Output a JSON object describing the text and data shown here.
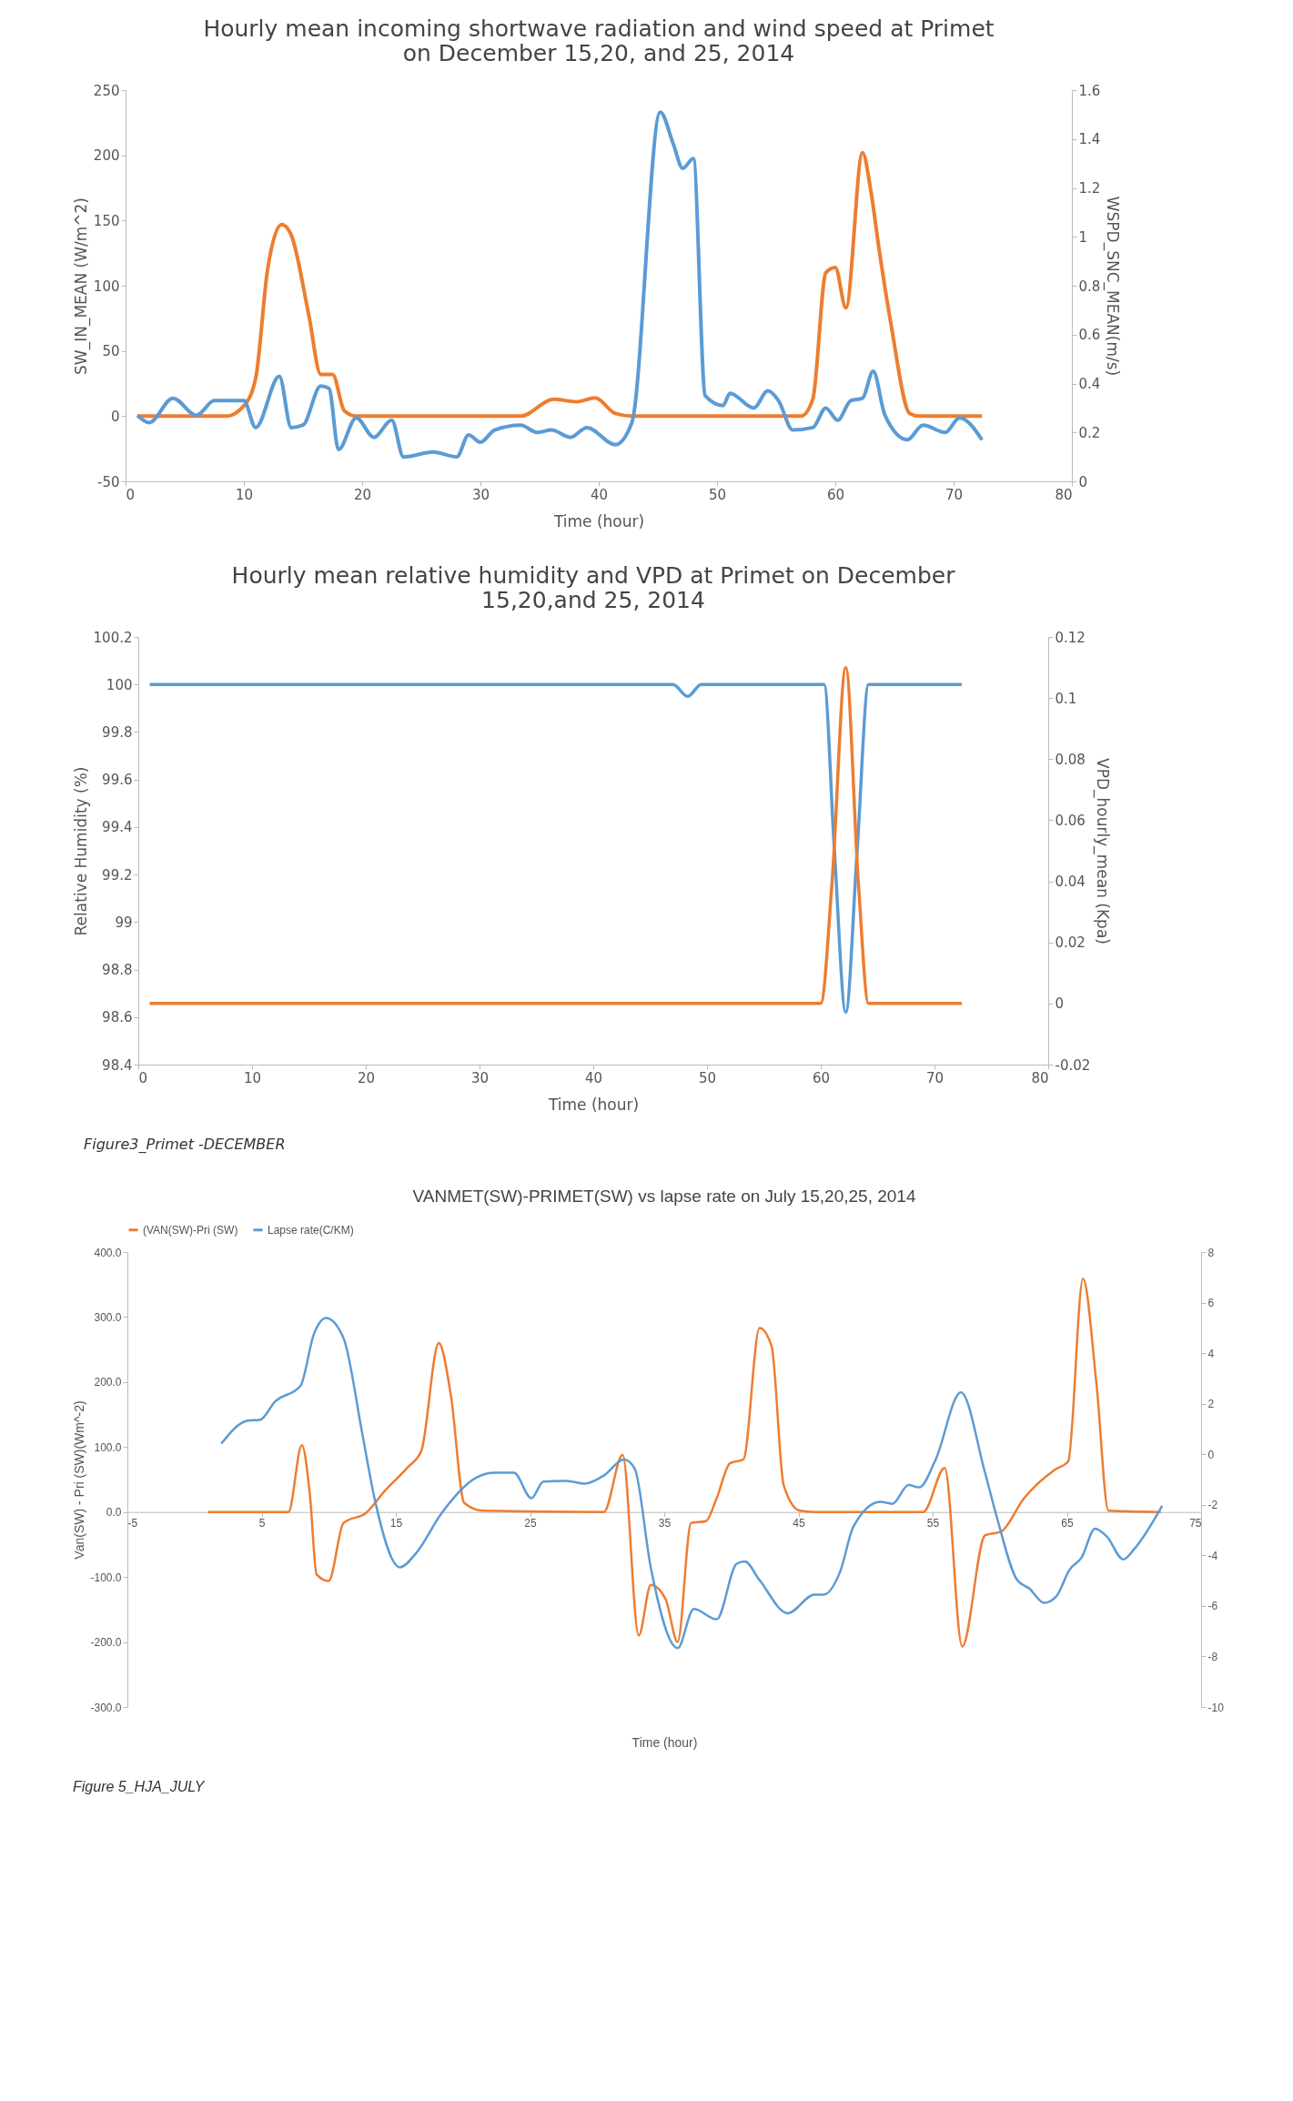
{
  "chart_data": [
    {
      "type": "line",
      "title": "Hourly mean incoming  shortwave radiation and wind speed at Primet on December 15,20, and 25, 2014",
      "xlabel": "Time (hour)",
      "ylabel": "SW_IN_MEAN (W/m^2)",
      "y2label": "WSPD_SNC_MEAN(m/s)",
      "xlim": [
        0,
        80
      ],
      "xticks": [
        0,
        10,
        20,
        30,
        40,
        50,
        60,
        70,
        80
      ],
      "ylim": [
        -50,
        250
      ],
      "yticks": [
        -50,
        0,
        50,
        100,
        150,
        200,
        250
      ],
      "y2lim": [
        0,
        1.6
      ],
      "y2ticks": [
        0,
        0.2,
        0.4,
        0.6,
        0.8,
        1,
        1.2,
        1.4,
        1.6
      ],
      "series": [
        {
          "color": "#ed7d31",
          "x": [
            1,
            8.5,
            10,
            11,
            12,
            13.2,
            14,
            15.5,
            16.5,
            17.5,
            18.5,
            19.5,
            33.4,
            36.2,
            38.1,
            39.7,
            41.4,
            42.8,
            56.4,
            57.1,
            58.1,
            59.2,
            60,
            60.9,
            62.3,
            63,
            63.7,
            64.7,
            66.3,
            67.1,
            72.4
          ],
          "values": [
            0,
            0,
            8,
            29,
            112,
            147,
            139,
            77,
            32,
            32,
            4,
            0,
            0,
            13,
            11,
            14,
            2,
            0,
            0,
            0,
            13,
            110,
            114,
            83,
            202,
            173,
            128,
            71,
            2,
            0,
            0
          ]
        },
        {
          "color": "#5b9bd5",
          "axis": "y2",
          "x": [
            1,
            2,
            4,
            6,
            7.5,
            10,
            11,
            13,
            14,
            15,
            16.5,
            17.2,
            18,
            19.5,
            21,
            22.5,
            23.5,
            26,
            28,
            29,
            30,
            31.2,
            33.4,
            34.8,
            36,
            37.6,
            39,
            41.4,
            42.8,
            45.2,
            46.3,
            47.1,
            48,
            49,
            50.5,
            51.1,
            53.1,
            54.3,
            55.2,
            56.4,
            58.1,
            59.2,
            60.2,
            61.3,
            62.3,
            63.2,
            64.2,
            66.1,
            67.4,
            69.3,
            70.5,
            72.4
          ],
          "values": [
            0.27,
            0.24,
            0.34,
            0.27,
            0.33,
            0.33,
            0.22,
            0.43,
            0.22,
            0.23,
            0.39,
            0.38,
            0.13,
            0.26,
            0.18,
            0.25,
            0.1,
            0.12,
            0.1,
            0.19,
            0.16,
            0.21,
            0.23,
            0.2,
            0.21,
            0.18,
            0.22,
            0.15,
            0.24,
            1.51,
            1.38,
            1.28,
            1.32,
            0.35,
            0.31,
            0.36,
            0.3,
            0.37,
            0.33,
            0.21,
            0.22,
            0.3,
            0.25,
            0.33,
            0.34,
            0.45,
            0.27,
            0.17,
            0.23,
            0.2,
            0.26,
            0.17
          ]
        }
      ]
    },
    {
      "type": "line",
      "title": "Hourly mean relative humidity and VPD at Primet on December 15,20,and 25, 2014",
      "xlabel": "Time (hour)",
      "ylabel": "Relative Humidity (%)",
      "y2label": "VPD_hourly_mean (Kpa)",
      "xlim": [
        0,
        80
      ],
      "xticks": [
        0,
        10,
        20,
        30,
        40,
        50,
        60,
        70,
        80
      ],
      "ylim": [
        98.4,
        100.2
      ],
      "yticks": [
        98.4,
        98.6,
        98.8,
        99,
        99.2,
        99.4,
        99.6,
        99.8,
        100,
        100.2
      ],
      "y2lim": [
        -0.02,
        0.12
      ],
      "y2ticks": [
        -0.02,
        0,
        0.02,
        0.04,
        0.06,
        0.08,
        0.1,
        0.12
      ],
      "annotations": [
        "Figure3_Primet -DECEMBER"
      ],
      "series": [
        {
          "color": "#5b9bd5",
          "x": [
            1,
            47,
            48.3,
            49.5,
            60.3,
            61.2,
            62.2,
            63.2,
            64.2,
            72.4
          ],
          "values": [
            100,
            100,
            99.95,
            100,
            100,
            99.3,
            98.62,
            99.3,
            100,
            100
          ]
        },
        {
          "color": "#ed7d31",
          "axis": "y2",
          "x": [
            1,
            60,
            61,
            62.2,
            63.3,
            64.2,
            72.4
          ],
          "values": [
            0,
            0,
            0.04,
            0.11,
            0.04,
            0,
            0
          ]
        }
      ]
    },
    {
      "type": "line",
      "title": "VANMET(SW)-PRIMET(SW) vs lapse rate on July 15,20,25, 2014",
      "xlabel": "Time (hour)",
      "ylabel": "Van(SW) - Pri (SW)(Wm^-2)",
      "legend": "top",
      "xlim": [
        -5,
        75
      ],
      "xticks": [
        -5,
        5,
        15,
        25,
        35,
        45,
        55,
        65,
        75
      ],
      "ylim": [
        -300,
        400
      ],
      "yticks": [
        {
          "value": -300,
          "label": "-300.0"
        },
        {
          "value": -200,
          "label": "-200.0"
        },
        {
          "value": -100,
          "label": "-100.0"
        },
        {
          "value": 0,
          "label": "0.0"
        },
        {
          "value": 100,
          "label": "100.0"
        },
        {
          "value": 200,
          "label": "200.0"
        },
        {
          "value": 300,
          "label": "300.0"
        },
        {
          "value": 400,
          "label": "400.0"
        }
      ],
      "y2lim": [
        -10,
        8
      ],
      "y2ticks": [
        -10,
        -8,
        -6,
        -4,
        -2,
        0,
        2,
        4,
        6,
        8
      ],
      "annotations": [
        "Figure 5_HJA_JULY"
      ],
      "series": [
        {
          "name": "(VAN(SW)-Pri (SW)",
          "color": "#ed7d31",
          "x": [
            1,
            6,
            7,
            8,
            8.6,
            9.1,
            10,
            11.1,
            12.8,
            14.2,
            15.9,
            16.9,
            18.2,
            19.1,
            20.1,
            21.5,
            30.5,
            31.9,
            33.1,
            34,
            35.1,
            36,
            37,
            38.1,
            38.9,
            39.9,
            40.9,
            42.1,
            43,
            43.9,
            45.1,
            46.2,
            54.3,
            55.9,
            57.2,
            58.9,
            60.1,
            61.8,
            64.1,
            65.1,
            66.2,
            67.2,
            68.1,
            72
          ],
          "values": [
            0,
            0,
            0,
            103,
            26,
            -96,
            -106,
            -17,
            -1,
            33,
            69,
            94,
            260,
            180,
            14,
            2,
            0,
            88,
            -190,
            -112,
            -134,
            -200,
            -17,
            -14,
            21,
            75,
            81,
            283,
            255,
            41,
            2,
            0,
            0,
            68,
            -207,
            -36,
            -30,
            21,
            65,
            78,
            359,
            198,
            2,
            0
          ]
        },
        {
          "name": "Lapse rate(C/KM)",
          "color": "#5b9bd5",
          "axis": "y2",
          "x": [
            2,
            3.9,
            4.9,
            6,
            7.9,
            8.9,
            9.8,
            11.1,
            12.5,
            13.4,
            15.3,
            16.5,
            18.4,
            21,
            22.4,
            23.8,
            25.1,
            26,
            27.7,
            29.1,
            30.5,
            32,
            32.8,
            34,
            36,
            37.2,
            38.9,
            40.4,
            41,
            42.1,
            44.2,
            46.2,
            46.9,
            48.1,
            49.1,
            51.1,
            52,
            53.2,
            54,
            55.2,
            57.1,
            58.9,
            59.8,
            61.3,
            62.2,
            63.3,
            64.2,
            65.2,
            66.1,
            67.1,
            68,
            69.2,
            70,
            72.1
          ],
          "values": [
            0.42,
            1.32,
            1.37,
            2.08,
            2.71,
            4.76,
            5.39,
            4.6,
            0.82,
            -1.71,
            -4.47,
            -3.92,
            -2.34,
            -0.92,
            -0.73,
            -0.73,
            -1.74,
            -1.08,
            -1.05,
            -1.16,
            -0.84,
            -0.21,
            -0.57,
            -4.49,
            -7.67,
            -6.12,
            -6.53,
            -4.33,
            -4.24,
            -4.98,
            -6.29,
            -5.55,
            -5.55,
            -4.65,
            -2.86,
            -1.88,
            -1.96,
            -1.22,
            -1.31,
            -0.24,
            2.45,
            -0.73,
            -2.53,
            -4.98,
            -5.31,
            -5.88,
            -5.63,
            -4.57,
            -4.08,
            -2.94,
            -3.27,
            -4.16,
            -3.76,
            -2.04
          ]
        }
      ]
    }
  ]
}
